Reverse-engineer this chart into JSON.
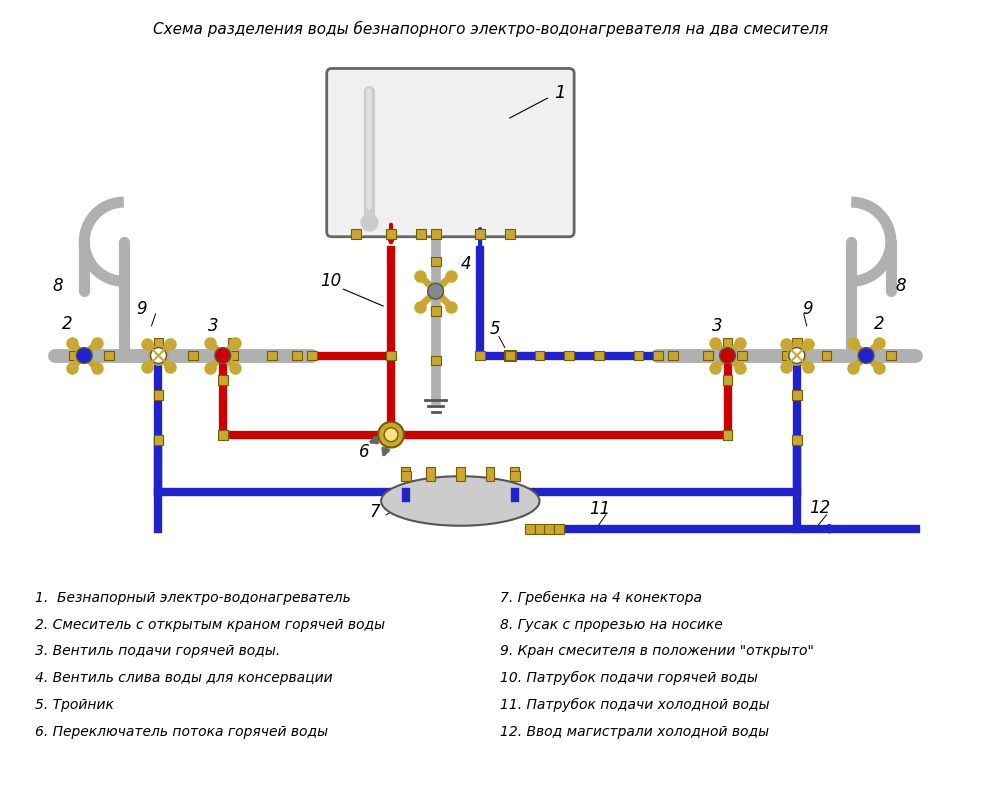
{
  "title": "Схема разделения воды безнапорного электро-водонагревателя на два смесителя",
  "bg_color": "#ffffff",
  "title_fontsize": 11,
  "legend_items_left": [
    "1.  Безнапорный электро-водонагреватель",
    "2. Смеситель с открытым краном горячей воды",
    "3. Вентиль подачи горячей воды.",
    "4. Вентиль слива воды для консервации",
    "5. Тройник",
    "6. Переключатель потока горячей воды"
  ],
  "legend_items_right": [
    "7. Гребенка на 4 конектора",
    "8. Гусак с прорезью на носике",
    "9. Кран смесителя в положении \"открыто\"",
    "10. Патрубок подачи горячей воды",
    "11. Патрубок подачи холодной воды",
    "12. Ввод магистрали холодной воды"
  ],
  "red_color": "#cc0000",
  "blue_color": "#2222cc",
  "pipe_color": "#b0b0b0",
  "fitting_color": "#c8a832",
  "heater_fill": "#f5f5f5",
  "heater_stroke": "#555555"
}
